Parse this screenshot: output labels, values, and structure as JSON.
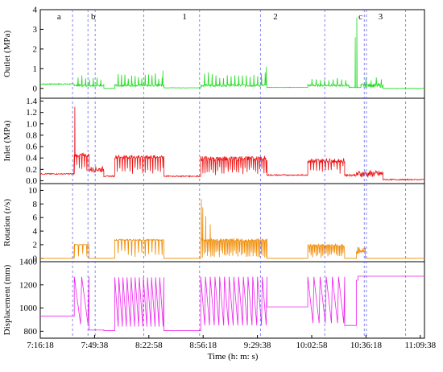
{
  "chart_data": [
    {
      "type": "line",
      "ylabel": "Outlet (MPa)",
      "ylim": [
        -0.5,
        4
      ],
      "yticks": [
        0,
        1,
        2,
        3,
        4
      ],
      "color": "#22dd22",
      "series": [
        {
          "x": [],
          "values": []
        }
      ],
      "segments": [
        {
          "x": [
            0,
            0.115
          ],
          "level": 0.22,
          "noise": 0.03,
          "spike": 0.0,
          "spikeEvery": 999
        },
        {
          "x": [
            0.115,
            0.215
          ],
          "level": 0.15,
          "noise": 0.05,
          "spike": 0.5,
          "spikeEvery": 9
        },
        {
          "x": [
            0.215,
            0.252
          ],
          "level": 0.0,
          "noise": 0.01,
          "spike": 0.0,
          "spikeEvery": 999
        },
        {
          "x": [
            0.252,
            0.418
          ],
          "level": 0.15,
          "noise": 0.06,
          "spike": 0.6,
          "spikeEvery": 8
        },
        {
          "x": [
            0.418,
            0.543
          ],
          "level": 0.03,
          "noise": 0.01,
          "spike": 0.0,
          "spikeEvery": 999
        },
        {
          "x": [
            0.543,
            0.767
          ],
          "level": 0.15,
          "noise": 0.06,
          "spike": 0.7,
          "spikeEvery": 9
        },
        {
          "x": [
            0.767,
            0.905
          ],
          "level": 0.05,
          "noise": 0.01,
          "spike": 0.0,
          "spikeEvery": 999
        },
        {
          "x": [
            0.905,
            1.045
          ],
          "level": 0.15,
          "noise": 0.05,
          "spike": 0.4,
          "spikeEvery": 10
        },
        {
          "x": [
            1.045,
            1.085
          ],
          "level": 0.05,
          "noise": 0.02,
          "spike": 0.0,
          "spikeEvery": 999
        },
        {
          "x": [
            1.085,
            1.16
          ],
          "level": 0.15,
          "noise": 0.1,
          "spike": 0.4,
          "spikeEvery": 12
        },
        {
          "x": [
            1.16,
            1.3
          ],
          "level": 0.0,
          "noise": 0.01,
          "spike": 0.0,
          "spikeEvery": 999
        }
      ],
      "peaks": [
        {
          "x": 1.071,
          "y": 3.6
        },
        {
          "x": 1.066,
          "y": 2.6
        },
        {
          "x": 0.765,
          "y": 1.1
        },
        {
          "x": 0.415,
          "y": 0.9
        }
      ]
    },
    {
      "type": "line",
      "ylabel": "Inlet (MPa)",
      "ylim": [
        -0.05,
        1.45
      ],
      "yticks": [
        0.0,
        0.2,
        0.4,
        0.6,
        0.8,
        1.0,
        1.2,
        1.4
      ],
      "color": "#ee1111",
      "series": [
        {
          "x": [],
          "values": []
        }
      ],
      "segments": [
        {
          "x": [
            0,
            0.115
          ],
          "level": 0.12,
          "noise": 0.01,
          "spike": 0.0,
          "spikeEvery": 999
        },
        {
          "x": [
            0.115,
            0.165
          ],
          "level": 0.45,
          "noise": 0.03,
          "spike": -0.3,
          "spikeEvery": 6
        },
        {
          "x": [
            0.165,
            0.215
          ],
          "level": 0.2,
          "noise": 0.05,
          "spike": 0.0,
          "spikeEvery": 999
        },
        {
          "x": [
            0.215,
            0.252
          ],
          "level": 0.08,
          "noise": 0.01,
          "spike": 0.0,
          "spikeEvery": 999
        },
        {
          "x": [
            0.252,
            0.418
          ],
          "level": 0.42,
          "noise": 0.03,
          "spike": -0.3,
          "spikeEvery": 6
        },
        {
          "x": [
            0.418,
            0.543
          ],
          "level": 0.08,
          "noise": 0.01,
          "spike": 0.0,
          "spikeEvery": 999
        },
        {
          "x": [
            0.543,
            0.767
          ],
          "level": 0.39,
          "noise": 0.04,
          "spike": -0.28,
          "spikeEvery": 5
        },
        {
          "x": [
            0.767,
            0.905
          ],
          "level": 0.1,
          "noise": 0.01,
          "spike": 0.0,
          "spikeEvery": 999
        },
        {
          "x": [
            0.905,
            1.03
          ],
          "level": 0.35,
          "noise": 0.04,
          "spike": -0.2,
          "spikeEvery": 7
        },
        {
          "x": [
            1.03,
            1.07
          ],
          "level": 0.1,
          "noise": 0.02,
          "spike": 0.0,
          "spikeEvery": 999
        },
        {
          "x": [
            1.07,
            1.16
          ],
          "level": 0.12,
          "noise": 0.06,
          "spike": 0.0,
          "spikeEvery": 999
        },
        {
          "x": [
            1.16,
            1.3
          ],
          "level": 0.02,
          "noise": 0.01,
          "spike": 0.0,
          "spikeEvery": 999
        }
      ],
      "peaks": [
        {
          "x": 0.117,
          "y": 1.3
        }
      ]
    },
    {
      "type": "line",
      "ylabel": "Rotation (r/s)",
      "ylim": [
        -0.5,
        11
      ],
      "yticks": [
        0,
        2,
        4,
        6,
        8,
        10
      ],
      "color": "#f08a00",
      "series": [
        {
          "x": [],
          "values": []
        }
      ],
      "segments": [
        {
          "x": [
            0,
            0.115
          ],
          "level": 0.0,
          "noise": 0.0,
          "spike": 0.0,
          "spikeEvery": 999
        },
        {
          "x": [
            0.115,
            0.165
          ],
          "level": 2.0,
          "noise": 0.05,
          "spike": -2.0,
          "spikeEvery": 10
        },
        {
          "x": [
            0.165,
            0.252
          ],
          "level": 0.0,
          "noise": 0.0,
          "spike": 0.0,
          "spikeEvery": 999
        },
        {
          "x": [
            0.252,
            0.418
          ],
          "level": 2.7,
          "noise": 0.1,
          "spike": -2.6,
          "spikeEvery": 8
        },
        {
          "x": [
            0.418,
            0.543
          ],
          "level": 0.0,
          "noise": 0.0,
          "spike": 0.0,
          "spikeEvery": 999
        },
        {
          "x": [
            0.543,
            0.767
          ],
          "level": 2.7,
          "noise": 0.2,
          "spike": -2.6,
          "spikeEvery": 4
        },
        {
          "x": [
            0.767,
            0.905
          ],
          "level": 0.0,
          "noise": 0.0,
          "spike": 0.0,
          "spikeEvery": 999
        },
        {
          "x": [
            0.905,
            1.03
          ],
          "level": 1.9,
          "noise": 0.2,
          "spike": -1.8,
          "spikeEvery": 4
        },
        {
          "x": [
            1.03,
            1.07
          ],
          "level": 0.0,
          "noise": 0.0,
          "spike": 0.0,
          "spikeEvery": 999
        },
        {
          "x": [
            1.07,
            1.1
          ],
          "level": 1.2,
          "noise": 0.5,
          "spike": 0.0,
          "spikeEvery": 999
        },
        {
          "x": [
            1.1,
            1.3
          ],
          "level": 0.0,
          "noise": 0.0,
          "spike": 0.0,
          "spikeEvery": 999
        }
      ],
      "peaks": [
        {
          "x": 0.545,
          "y": 8.7
        },
        {
          "x": 0.55,
          "y": 7.5
        },
        {
          "x": 0.56,
          "y": 6.2
        },
        {
          "x": 0.575,
          "y": 5.0
        }
      ]
    },
    {
      "type": "line",
      "ylabel": "Displacement (mm)",
      "xlabel": "Time (h: m: s)",
      "ylim": [
        740,
        1400
      ],
      "yticks": [
        800,
        1000,
        1200,
        1400
      ],
      "color": "#ee22ee",
      "xticks": [
        "7:16:18",
        "7:49:38",
        "8:22:58",
        "8:56:18",
        "9:29:38",
        "10:02:58",
        "10:36:18",
        "11:09:38"
      ],
      "series": [
        {
          "x": [],
          "values": []
        }
      ],
      "sawtooth": [
        {
          "x": [
            0.0,
            0.115
          ],
          "flat": 930
        },
        {
          "x": [
            0.115,
            0.165
          ],
          "top": 1270,
          "bottom": 860,
          "teeth": 2
        },
        {
          "x": [
            0.165,
            0.215
          ],
          "flat": 810
        },
        {
          "x": [
            0.215,
            0.252
          ],
          "flat": 805
        },
        {
          "x": [
            0.252,
            0.418
          ],
          "top": 1265,
          "bottom": 840,
          "teeth": 12
        },
        {
          "x": [
            0.418,
            0.543
          ],
          "flat": 805
        },
        {
          "x": [
            0.543,
            0.767
          ],
          "top": 1270,
          "bottom": 850,
          "teeth": 14
        },
        {
          "x": [
            0.767,
            0.905
          ],
          "flat": 1010
        },
        {
          "x": [
            0.905,
            1.03
          ],
          "top": 1270,
          "bottom": 870,
          "teeth": 6
        },
        {
          "x": [
            1.03,
            1.07
          ],
          "flat": 850
        },
        {
          "x": [
            1.07,
            1.075
          ],
          "flat": 1240
        },
        {
          "x": [
            1.075,
            1.3
          ],
          "flat": 1275
        }
      ]
    }
  ],
  "phases": {
    "boundaries": [
      0.103,
      0.152,
      0.175,
      0.33,
      0.508,
      0.702,
      0.907,
      1.033,
      1.04,
      1.165
    ],
    "labels": [
      {
        "text": "a",
        "x": 0.06
      },
      {
        "text": "b",
        "x": 0.169
      },
      {
        "text": "1",
        "x": 0.46
      },
      {
        "text": "2",
        "x": 0.75
      },
      {
        "text": "c",
        "x": 1.021
      },
      {
        "text": "3",
        "x": 1.085
      }
    ]
  }
}
